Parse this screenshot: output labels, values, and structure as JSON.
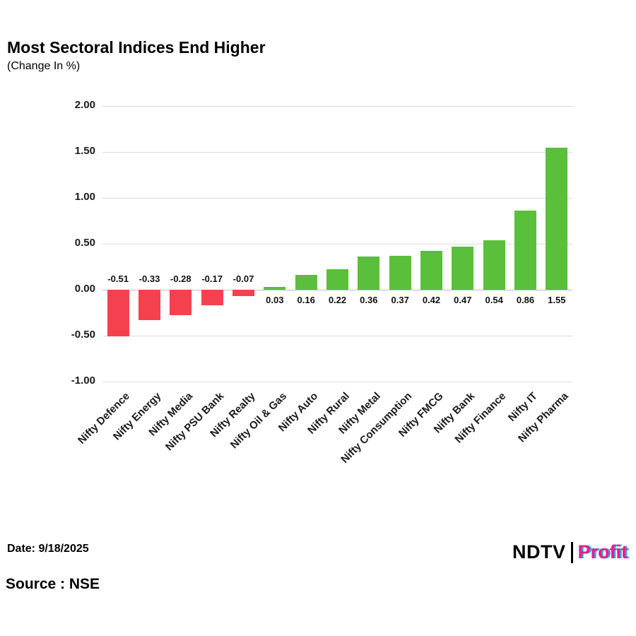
{
  "header": {
    "title": "Most Sectoral Indices End Higher",
    "subtitle": "(Change In %)"
  },
  "footer": {
    "date_label": "Date: 9/18/2025",
    "source_label": "Source : NSE"
  },
  "logo": {
    "ndtv": "NDTV",
    "profit": "Profit"
  },
  "chart_data": {
    "type": "bar",
    "title": "Most Sectoral Indices End Higher",
    "subtitle": "(Change In %)",
    "xlabel": "",
    "ylabel": "",
    "categories": [
      "Nifty Defence",
      "Nifty Energy",
      "Nifty Media",
      "Nifty PSU Bank",
      "Nifty Realty",
      "Nifty Oil & Gas",
      "Nifty Auto",
      "Nifty Rural",
      "Nifty Metal",
      "Nifty Consumption",
      "Nifty FMCG",
      "Nifty Bank",
      "Nifty Finance",
      "Nifty IT",
      "Nifty Pharma"
    ],
    "values": [
      -0.51,
      -0.33,
      -0.28,
      -0.17,
      -0.07,
      0.03,
      0.16,
      0.22,
      0.36,
      0.37,
      0.42,
      0.47,
      0.54,
      0.86,
      1.55
    ],
    "ylim": [
      -1.0,
      2.0
    ],
    "yticks": [
      2.0,
      1.5,
      1.0,
      0.5,
      0.0,
      -0.5,
      -1.0
    ],
    "grid": true,
    "legend": false,
    "colors": {
      "positive": "#5abf3a",
      "negative": "#f4414f"
    }
  }
}
